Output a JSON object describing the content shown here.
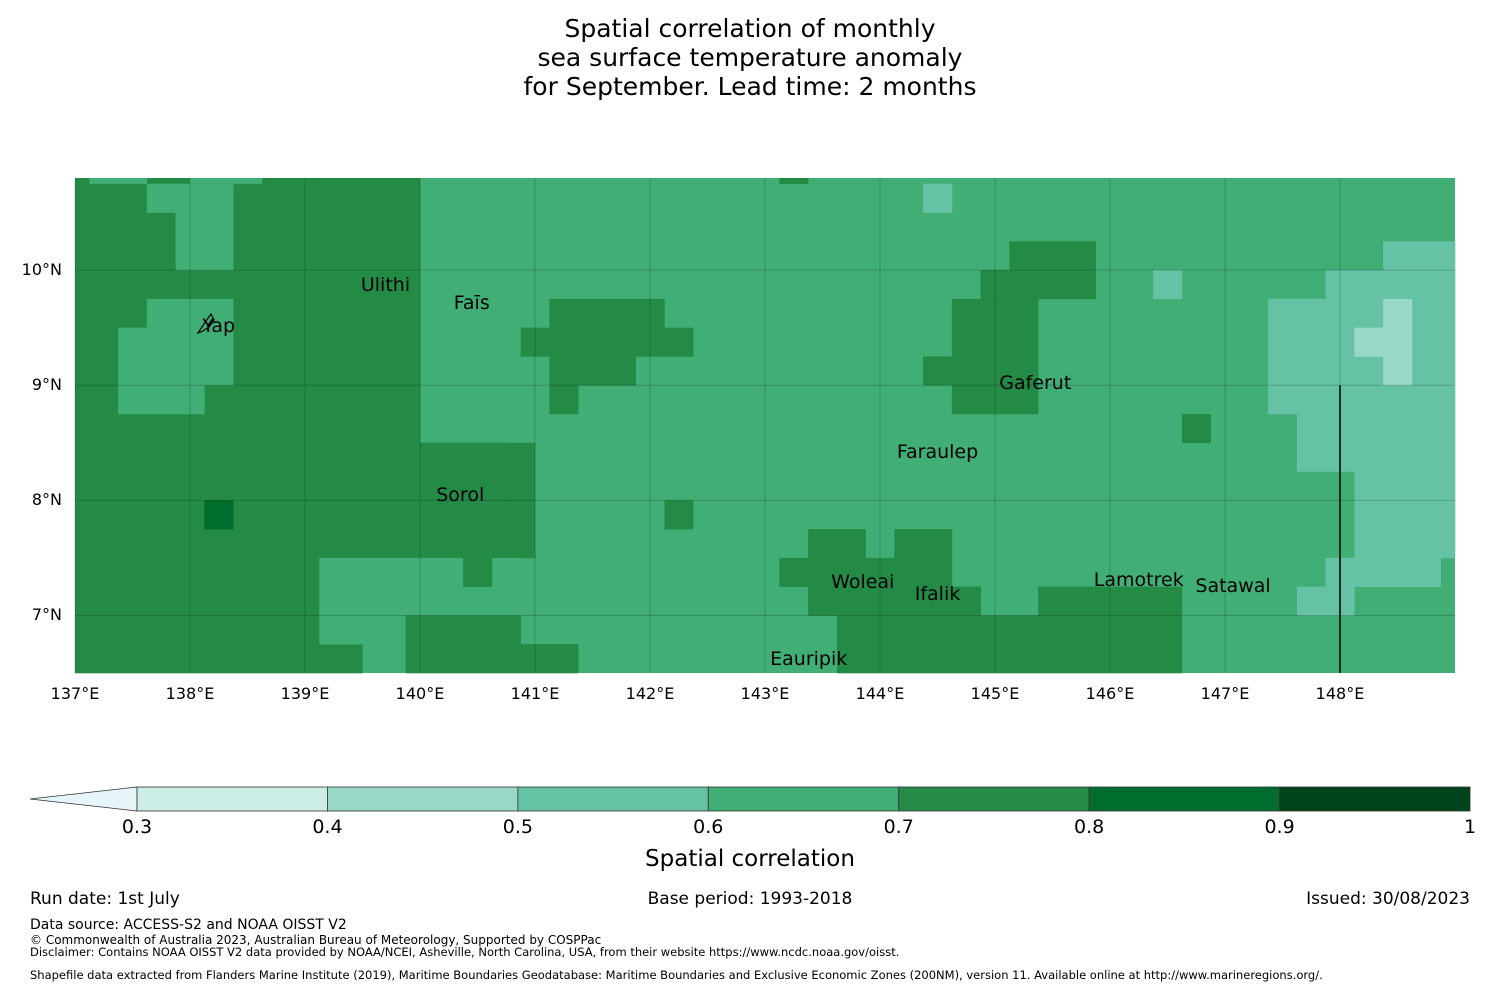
{
  "title": "Spatial correlation of monthly\nsea surface temperature anomaly\nfor September. Lead time: 2 months",
  "map": {
    "x_ticks": [
      "137°E",
      "138°E",
      "139°E",
      "140°E",
      "141°E",
      "142°E",
      "143°E",
      "144°E",
      "145°E",
      "146°E",
      "147°E",
      "148°E"
    ],
    "y_ticks": [
      "10°N",
      "9°N",
      "8°N",
      "7°N"
    ],
    "extent": {
      "lon": [
        137.0,
        149.0
      ],
      "lat": [
        6.5,
        10.8
      ]
    },
    "cell_size_deg": 0.25,
    "background_value": 0.65,
    "places": [
      {
        "name": "Yap",
        "lon": 138.25,
        "lat": 9.5
      },
      {
        "name": "Ulithi",
        "lon": 139.7,
        "lat": 9.85
      },
      {
        "name": "Faīs",
        "lon": 140.45,
        "lat": 9.7
      },
      {
        "name": "Gaferut",
        "lon": 145.35,
        "lat": 9.0
      },
      {
        "name": "Faraulep",
        "lon": 144.5,
        "lat": 8.4
      },
      {
        "name": "Sorol",
        "lon": 140.35,
        "lat": 8.03
      },
      {
        "name": "Woleai",
        "lon": 143.85,
        "lat": 7.27
      },
      {
        "name": "Ifalik",
        "lon": 144.5,
        "lat": 7.17
      },
      {
        "name": "Lamotrek",
        "lon": 146.25,
        "lat": 7.29
      },
      {
        "name": "Satawal",
        "lon": 147.07,
        "lat": 7.24
      },
      {
        "name": "Eauripik",
        "lon": 143.38,
        "lat": 6.6
      }
    ],
    "regions": [
      {
        "lon": [
          137.0,
          139.5
        ],
        "lat": [
          6.5,
          10.8
        ],
        "value": 0.75
      },
      {
        "lon": [
          139.5,
          140.0
        ],
        "lat": [
          8.5,
          10.8
        ],
        "value": 0.75
      },
      {
        "lon": [
          139.5,
          141.0
        ],
        "lat": [
          7.5,
          8.5
        ],
        "value": 0.75
      },
      {
        "lon": [
          140.0,
          140.75
        ],
        "lat": [
          8.0,
          8.5
        ],
        "value": 0.75
      },
      {
        "lon": [
          138.75,
          139.75
        ],
        "lat": [
          10.75,
          10.8
        ],
        "value": 0.75
      },
      {
        "lon": [
          137.125,
          137.625
        ],
        "lat": [
          10.75,
          10.8
        ],
        "value": 0.65
      },
      {
        "lon": [
          138.0,
          138.625
        ],
        "lat": [
          10.75,
          10.8
        ],
        "value": 0.65
      },
      {
        "lon": [
          137.625,
          138.375
        ],
        "lat": [
          10.5,
          10.75
        ],
        "value": 0.65
      },
      {
        "lon": [
          137.875,
          138.375
        ],
        "lat": [
          10.0,
          10.5
        ],
        "value": 0.65
      },
      {
        "lon": [
          137.625,
          138.375
        ],
        "lat": [
          9.5,
          9.75
        ],
        "value": 0.65
      },
      {
        "lon": [
          137.375,
          138.375
        ],
        "lat": [
          9.0,
          9.5
        ],
        "value": 0.65
      },
      {
        "lon": [
          137.375,
          138.125
        ],
        "lat": [
          8.75,
          9.0
        ],
        "value": 0.65
      },
      {
        "lon": [
          138.125,
          138.375
        ],
        "lat": [
          7.75,
          8.0
        ],
        "value": 0.85
      },
      {
        "lon": [
          139.125,
          140.875
        ],
        "lat": [
          6.75,
          7.5
        ],
        "value": 0.65
      },
      {
        "lon": [
          140.375,
          140.625
        ],
        "lat": [
          7.25,
          7.5
        ],
        "value": 0.75
      },
      {
        "lon": [
          139.875,
          140.875
        ],
        "lat": [
          6.5,
          7.0
        ],
        "value": 0.75
      },
      {
        "lon": [
          140.875,
          141.375
        ],
        "lat": [
          6.5,
          6.75
        ],
        "value": 0.75
      },
      {
        "lon": [
          141.125,
          142.125
        ],
        "lat": [
          9.5,
          9.75
        ],
        "value": 0.75
      },
      {
        "lon": [
          140.875,
          142.375
        ],
        "lat": [
          9.25,
          9.5
        ],
        "value": 0.75
      },
      {
        "lon": [
          141.125,
          141.875
        ],
        "lat": [
          9.0,
          9.25
        ],
        "value": 0.75
      },
      {
        "lon": [
          141.125,
          141.375
        ],
        "lat": [
          8.75,
          9.0
        ],
        "value": 0.75
      },
      {
        "lon": [
          142.125,
          142.375
        ],
        "lat": [
          7.75,
          8.0
        ],
        "value": 0.75
      },
      {
        "lon": [
          143.125,
          143.375
        ],
        "lat": [
          10.75,
          10.8
        ],
        "value": 0.75
      },
      {
        "lon": [
          143.375,
          143.875
        ],
        "lat": [
          7.5,
          7.75
        ],
        "value": 0.75
      },
      {
        "lon": [
          143.125,
          144.625
        ],
        "lat": [
          7.25,
          7.5
        ],
        "value": 0.75
      },
      {
        "lon": [
          143.375,
          144.625
        ],
        "lat": [
          7.0,
          7.25
        ],
        "value": 0.75
      },
      {
        "lon": [
          144.125,
          144.625
        ],
        "lat": [
          7.5,
          7.75
        ],
        "value": 0.75
      },
      {
        "lon": [
          143.625,
          146.625
        ],
        "lat": [
          6.5,
          7.0
        ],
        "value": 0.75
      },
      {
        "lon": [
          144.625,
          144.875
        ],
        "lat": [
          7.0,
          7.25
        ],
        "value": 0.75
      },
      {
        "lon": [
          145.375,
          146.625
        ],
        "lat": [
          7.0,
          7.25
        ],
        "value": 0.75
      },
      {
        "lon": [
          145.125,
          145.875
        ],
        "lat": [
          10.0,
          10.25
        ],
        "value": 0.75
      },
      {
        "lon": [
          144.875,
          145.875
        ],
        "lat": [
          9.75,
          10.0
        ],
        "value": 0.75
      },
      {
        "lon": [
          144.625,
          145.375
        ],
        "lat": [
          9.25,
          9.75
        ],
        "value": 0.75
      },
      {
        "lon": [
          144.375,
          145.375
        ],
        "lat": [
          9.0,
          9.25
        ],
        "value": 0.75
      },
      {
        "lon": [
          144.625,
          145.375
        ],
        "lat": [
          8.75,
          9.0
        ],
        "value": 0.75
      },
      {
        "lon": [
          146.625,
          146.875
        ],
        "lat": [
          8.5,
          8.75
        ],
        "value": 0.75
      },
      {
        "lon": [
          144.375,
          144.625
        ],
        "lat": [
          10.5,
          10.75
        ],
        "value": 0.55
      },
      {
        "lon": [
          146.375,
          146.625
        ],
        "lat": [
          9.75,
          10.0
        ],
        "value": 0.55
      },
      {
        "lon": [
          148.375,
          149.0
        ],
        "lat": [
          10.0,
          10.25
        ],
        "value": 0.55
      },
      {
        "lon": [
          147.875,
          149.0
        ],
        "lat": [
          9.75,
          10.0
        ],
        "value": 0.55
      },
      {
        "lon": [
          147.375,
          149.0
        ],
        "lat": [
          8.75,
          9.75
        ],
        "value": 0.55
      },
      {
        "lon": [
          147.625,
          149.0
        ],
        "lat": [
          8.25,
          8.75
        ],
        "value": 0.55
      },
      {
        "lon": [
          148.125,
          149.0
        ],
        "lat": [
          7.5,
          8.25
        ],
        "value": 0.55
      },
      {
        "lon": [
          147.875,
          148.875
        ],
        "lat": [
          7.25,
          7.5
        ],
        "value": 0.55
      },
      {
        "lon": [
          147.625,
          148.125
        ],
        "lat": [
          7.0,
          7.25
        ],
        "value": 0.55
      },
      {
        "lon": [
          148.375,
          148.625
        ],
        "lat": [
          9.0,
          9.75
        ],
        "value": 0.45
      },
      {
        "lon": [
          148.125,
          148.375
        ],
        "lat": [
          9.25,
          9.5
        ],
        "value": 0.45
      }
    ],
    "boundary_line": {
      "lon": 148.0,
      "lat": [
        6.5,
        9.0
      ]
    }
  },
  "colorbar": {
    "label": "Spatial correlation",
    "ticks": [
      "0.3",
      "0.4",
      "0.5",
      "0.6",
      "0.7",
      "0.8",
      "0.9",
      "1"
    ],
    "bins": [
      {
        "range": [
          0.2,
          0.3
        ],
        "color": "#e5f5f9"
      },
      {
        "range": [
          0.3,
          0.4
        ],
        "color": "#ccece6"
      },
      {
        "range": [
          0.4,
          0.5
        ],
        "color": "#99d8c9"
      },
      {
        "range": [
          0.5,
          0.6
        ],
        "color": "#66c2a4"
      },
      {
        "range": [
          0.6,
          0.7
        ],
        "color": "#41ae76"
      },
      {
        "range": [
          0.7,
          0.8
        ],
        "color": "#238b45"
      },
      {
        "range": [
          0.8,
          0.9
        ],
        "color": "#006d2c"
      },
      {
        "range": [
          0.9,
          1.0
        ],
        "color": "#00441b"
      }
    ]
  },
  "footer": {
    "run_date": "Run date: 1st July",
    "base_period": "Base period: 1993-2018",
    "issued": "Issued: 30/08/2023",
    "data_source": "Data source: ACCESS-S2 and NOAA OISST V2",
    "copyright": "© Commonwealth of Australia 2023, Australian Bureau of Meteorology, Supported by COSPPac",
    "disclaimer": "Disclaimer: Contains NOAA OISST V2 data provided by NOAA/NCEI, Asheville, North Carolina, USA, from their website https://www.ncdc.noaa.gov/oisst.",
    "shapefile": "Shapefile data extracted from Flanders Marine Institute (2019), Maritime Boundaries Geodatabase: Maritime Boundaries and Exclusive Economic Zones (200NM), version 11. Available online at http://www.marineregions.org/."
  }
}
